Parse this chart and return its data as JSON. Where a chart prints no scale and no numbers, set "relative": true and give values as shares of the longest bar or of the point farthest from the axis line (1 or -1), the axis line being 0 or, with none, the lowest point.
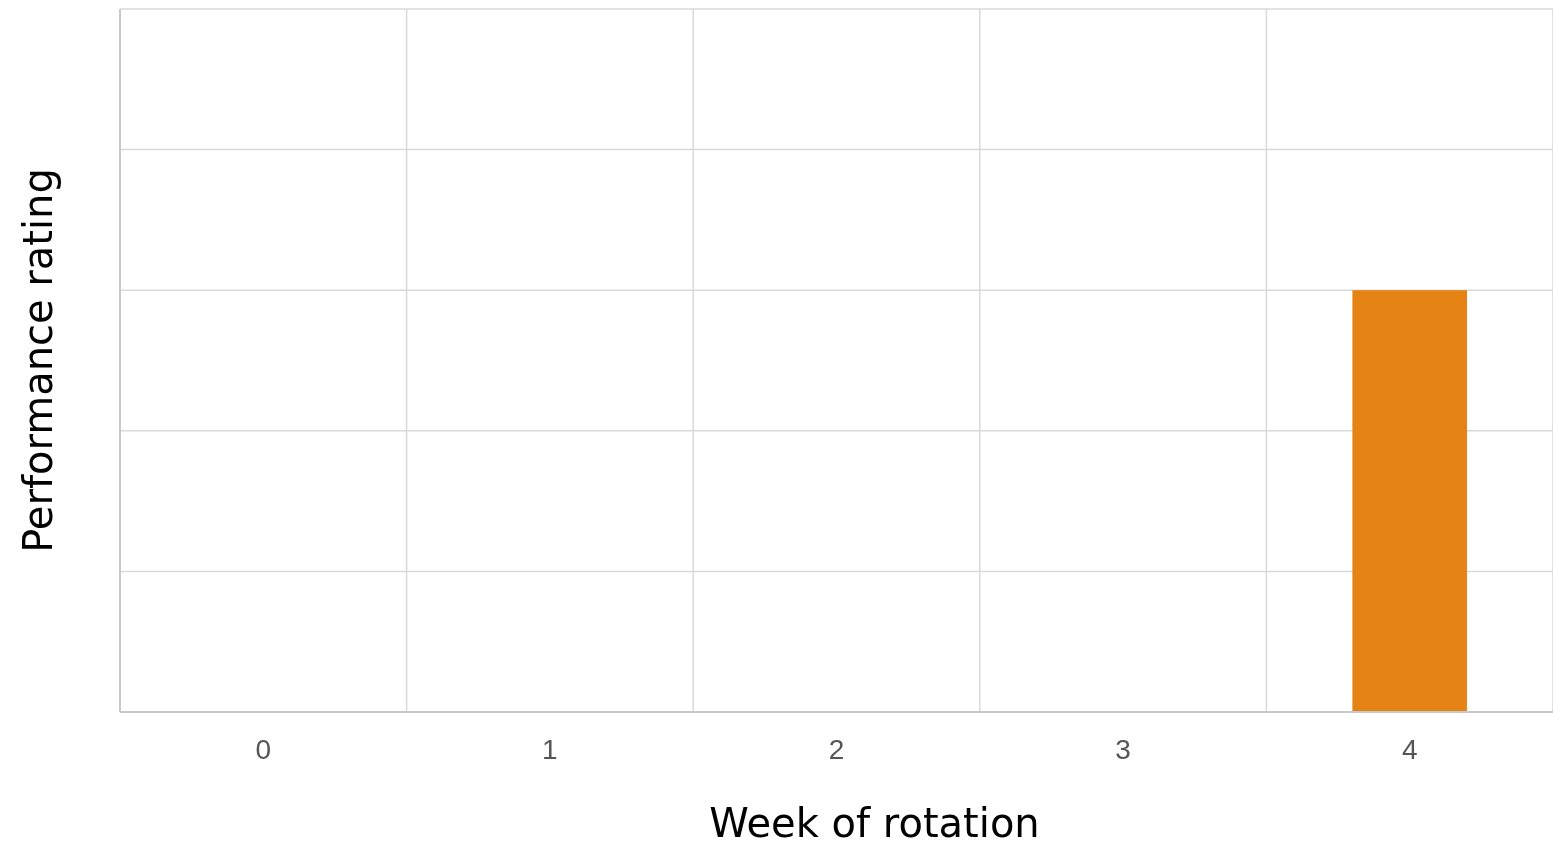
{
  "chart_data": {
    "type": "bar",
    "relative": true,
    "xlabel": "Week of rotation",
    "ylabel": "Performance rating",
    "categories": [
      "0",
      "1",
      "2",
      "3",
      "4"
    ],
    "values": [
      0,
      0,
      0,
      0,
      1
    ],
    "color": "#e58314",
    "grid": true
  }
}
